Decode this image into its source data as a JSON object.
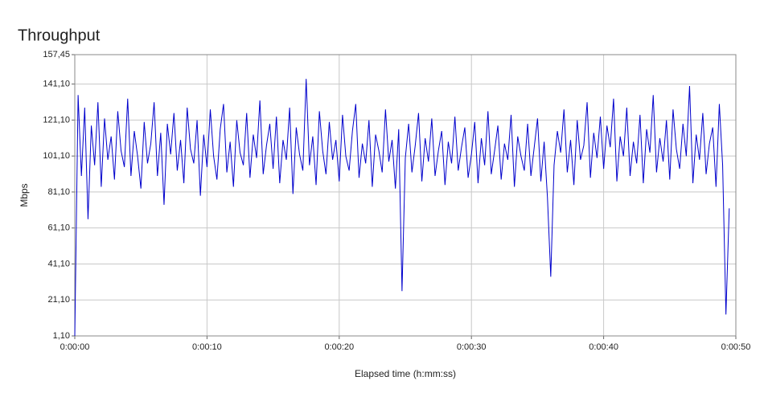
{
  "chart_data": {
    "type": "line",
    "title": "Throughput",
    "ylabel": "Mbps",
    "xlabel": "Elapsed time (h:mm:ss)",
    "color": "#0000cc",
    "grid": true,
    "xlim": [
      0,
      50
    ],
    "ylim": [
      1.1,
      157.45
    ],
    "xticks": [
      {
        "value": 0,
        "label": "0:00:00"
      },
      {
        "value": 10,
        "label": "0:00:10"
      },
      {
        "value": 20,
        "label": "0:00:20"
      },
      {
        "value": 30,
        "label": "0:00:30"
      },
      {
        "value": 40,
        "label": "0:00:40"
      },
      {
        "value": 50,
        "label": "0:00:50"
      }
    ],
    "yticks": [
      {
        "value": 1.1,
        "label": "1,10"
      },
      {
        "value": 21.1,
        "label": "21,10"
      },
      {
        "value": 41.1,
        "label": "41,10"
      },
      {
        "value": 61.1,
        "label": "61,10"
      },
      {
        "value": 81.1,
        "label": "81,10"
      },
      {
        "value": 101.1,
        "label": "101,10"
      },
      {
        "value": 121.1,
        "label": "121,10"
      },
      {
        "value": 141.1,
        "label": "141,10"
      },
      {
        "value": 157.45,
        "label": "157,45"
      }
    ],
    "x": [
      0,
      0.25,
      0.5,
      0.75,
      1,
      1.25,
      1.5,
      1.75,
      2,
      2.25,
      2.5,
      2.75,
      3,
      3.25,
      3.5,
      3.75,
      4,
      4.25,
      4.5,
      4.75,
      5,
      5.25,
      5.5,
      5.75,
      6,
      6.25,
      6.5,
      6.75,
      7,
      7.25,
      7.5,
      7.75,
      8,
      8.25,
      8.5,
      8.75,
      9,
      9.25,
      9.5,
      9.75,
      10,
      10.25,
      10.5,
      10.75,
      11,
      11.25,
      11.5,
      11.75,
      12,
      12.25,
      12.5,
      12.75,
      13,
      13.25,
      13.5,
      13.75,
      14,
      14.25,
      14.5,
      14.75,
      15,
      15.25,
      15.5,
      15.75,
      16,
      16.25,
      16.5,
      16.75,
      17,
      17.25,
      17.5,
      17.75,
      18,
      18.25,
      18.5,
      18.75,
      19,
      19.25,
      19.5,
      19.75,
      20,
      20.25,
      20.5,
      20.75,
      21,
      21.25,
      21.5,
      21.75,
      22,
      22.25,
      22.5,
      22.75,
      23,
      23.25,
      23.5,
      23.75,
      24,
      24.25,
      24.5,
      24.75,
      25,
      25.25,
      25.5,
      25.75,
      26,
      26.25,
      26.5,
      26.75,
      27,
      27.25,
      27.5,
      27.75,
      28,
      28.25,
      28.5,
      28.75,
      29,
      29.25,
      29.5,
      29.75,
      30,
      30.25,
      30.5,
      30.75,
      31,
      31.25,
      31.5,
      31.75,
      32,
      32.25,
      32.5,
      32.75,
      33,
      33.25,
      33.5,
      33.75,
      34,
      34.25,
      34.5,
      34.75,
      35,
      35.25,
      35.5,
      35.75,
      36,
      36.25,
      36.5,
      36.75,
      37,
      37.25,
      37.5,
      37.75,
      38,
      38.25,
      38.5,
      38.75,
      39,
      39.25,
      39.5,
      39.75,
      40,
      40.25,
      40.5,
      40.75,
      41,
      41.25,
      41.5,
      41.75,
      42,
      42.25,
      42.5,
      42.75,
      43,
      43.25,
      43.5,
      43.75,
      44,
      44.25,
      44.5,
      44.75,
      45,
      45.25,
      45.5,
      45.75,
      46,
      46.25,
      46.5,
      46.75,
      47,
      47.25,
      47.5,
      47.75,
      48,
      48.25,
      48.5,
      48.75,
      49,
      49.25,
      49.5
    ],
    "values": [
      1.1,
      135,
      90,
      128,
      66,
      118,
      96,
      131,
      84,
      122,
      99,
      112,
      88,
      126,
      104,
      95,
      133,
      90,
      115,
      101,
      83,
      120,
      97,
      108,
      131,
      90,
      114,
      74,
      119,
      102,
      125,
      93,
      110,
      86,
      128,
      105,
      97,
      121,
      79,
      113,
      95,
      127,
      101,
      88,
      116,
      130,
      92,
      109,
      84,
      121,
      103,
      96,
      125,
      89,
      113,
      100,
      132,
      91,
      107,
      119,
      94,
      123,
      86,
      110,
      99,
      128,
      80,
      117,
      102,
      93,
      144,
      96,
      112,
      85,
      126,
      104,
      91,
      120,
      99,
      110,
      87,
      124,
      101,
      93,
      115,
      130,
      89,
      108,
      97,
      121,
      84,
      113,
      104,
      92,
      127,
      98,
      110,
      83,
      116,
      26,
      100,
      119,
      92,
      107,
      125,
      87,
      111,
      98,
      122,
      90,
      104,
      115,
      85,
      109,
      97,
      123,
      93,
      106,
      117,
      89,
      102,
      120,
      86,
      111,
      96,
      126,
      91,
      104,
      118,
      88,
      108,
      99,
      124,
      84,
      112,
      101,
      93,
      119,
      90,
      106,
      122,
      87,
      109,
      78,
      34,
      96,
      115,
      103,
      127,
      92,
      110,
      85,
      121,
      99,
      107,
      131,
      89,
      114,
      100,
      123,
      94,
      118,
      106,
      133,
      87,
      112,
      101,
      128,
      90,
      109,
      97,
      124,
      86,
      116,
      103,
      135,
      92,
      111,
      98,
      121,
      88,
      127,
      105,
      94,
      119,
      101,
      140,
      86,
      113,
      99,
      125,
      91,
      108,
      117,
      84,
      130,
      96,
      13,
      72
    ]
  }
}
